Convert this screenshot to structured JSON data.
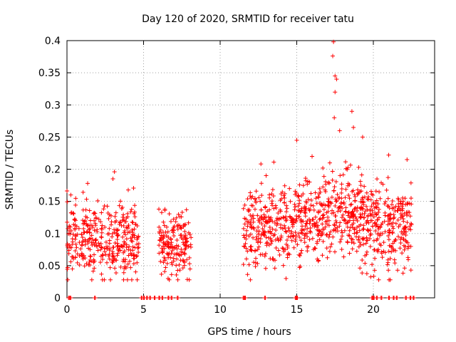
{
  "chart_data": {
    "type": "scatter",
    "title": "Day 120 of 2020, SRMTID for receiver tatu",
    "xlabel": "GPS time / hours",
    "ylabel": "SRMTID / TECUs",
    "xlim": [
      0,
      24
    ],
    "ylim": [
      0,
      0.4
    ],
    "xticks": [
      0,
      5,
      10,
      15,
      20
    ],
    "yticks": [
      0,
      0.05,
      0.1,
      0.15,
      0.2,
      0.25,
      0.3,
      0.35,
      0.4
    ],
    "grid": true,
    "marker": "+",
    "color": "#ff0000",
    "series": [
      {
        "name": "SRMTID",
        "segments": [
          {
            "x_range": [
              0.0,
              4.7
            ],
            "baseline": 0.09,
            "spread": 0.035,
            "count": 360,
            "peaks": [
              [
                0.25,
                0.16
              ],
              [
                1.35,
                0.178
              ],
              [
                3.1,
                0.196
              ],
              [
                3.0,
                0.185
              ]
            ]
          },
          {
            "x_range": [
              6.0,
              8.1
            ],
            "baseline": 0.08,
            "spread": 0.03,
            "count": 170,
            "peaks": [
              [
                6.0,
                0.138
              ],
              [
                7.8,
                0.137
              ],
              [
                6.6,
                0.03
              ]
            ]
          },
          {
            "x_range": [
              11.5,
              22.5
            ],
            "baseline": 0.11,
            "spread": 0.04,
            "count": 900,
            "peaks": [
              [
                17.4,
                0.398
              ],
              [
                17.35,
                0.376
              ],
              [
                17.5,
                0.345
              ],
              [
                17.6,
                0.34
              ],
              [
                17.5,
                0.32
              ],
              [
                17.45,
                0.28
              ],
              [
                17.8,
                0.26
              ],
              [
                18.6,
                0.29
              ],
              [
                18.7,
                0.265
              ],
              [
                15.0,
                0.245
              ],
              [
                19.3,
                0.25
              ],
              [
                21.0,
                0.222
              ],
              [
                22.2,
                0.215
              ],
              [
                13.0,
                0.19
              ],
              [
                16.0,
                0.22
              ],
              [
                14.3,
                0.03
              ]
            ]
          }
        ]
      }
    ],
    "zero_markers": [
      0.1,
      0.2,
      1.8,
      4.85,
      5.0,
      5.2,
      5.4,
      5.7,
      6.0,
      6.2,
      6.6,
      6.8,
      7.2,
      11.5,
      11.6,
      12.9,
      14.9,
      15.0,
      19.9,
      20.0,
      20.2,
      20.5,
      21.0,
      21.3,
      21.5,
      22.1,
      22.4,
      22.6
    ]
  }
}
